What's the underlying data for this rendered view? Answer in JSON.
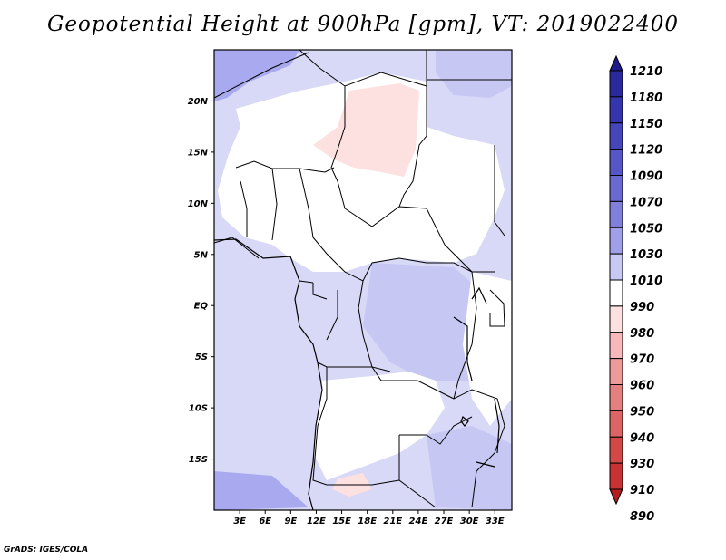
{
  "title": "Geopotential Height at 900hPa [gpm], VT: 2019022400",
  "credit": "GrADS: IGES/COLA",
  "map": {
    "lat_labels": [
      "20N",
      "15N",
      "10N",
      "5N",
      "EQ",
      "5S",
      "10S",
      "15S"
    ],
    "lat_values": [
      20,
      15,
      10,
      5,
      0,
      -5,
      -10,
      -15
    ],
    "lon_labels": [
      "3E",
      "6E",
      "9E",
      "12E",
      "15E",
      "18E",
      "21E",
      "24E",
      "27E",
      "30E",
      "33E"
    ],
    "lon_values": [
      3,
      6,
      9,
      12,
      15,
      18,
      21,
      24,
      27,
      30,
      33
    ],
    "lon_range": [
      0,
      35
    ],
    "lat_range": [
      -20,
      25
    ]
  },
  "colorbar": {
    "levels": [
      "1210",
      "1180",
      "1150",
      "1120",
      "1090",
      "1070",
      "1050",
      "1030",
      "1010",
      "990",
      "980",
      "970",
      "960",
      "950",
      "940",
      "930",
      "910",
      "890"
    ],
    "colors": [
      "#1e1a8c",
      "#2a2a9e",
      "#3536ad",
      "#4446b9",
      "#5656c6",
      "#6a6ad2",
      "#8080dc",
      "#a0a0ea",
      "#c8c8f4",
      "#ffffff",
      "#fde0e0",
      "#f6b8b8",
      "#ee9a9a",
      "#e48080",
      "#dc6464",
      "#d44848",
      "#c83232",
      "#b41e1e"
    ]
  },
  "colors": {
    "map_base": "#d8d8f7",
    "map_mid": "#c7c7f3",
    "map_dark": "#a9a9ef",
    "white_zone": "#ffffff",
    "pink_zone": "#fde0e0"
  }
}
